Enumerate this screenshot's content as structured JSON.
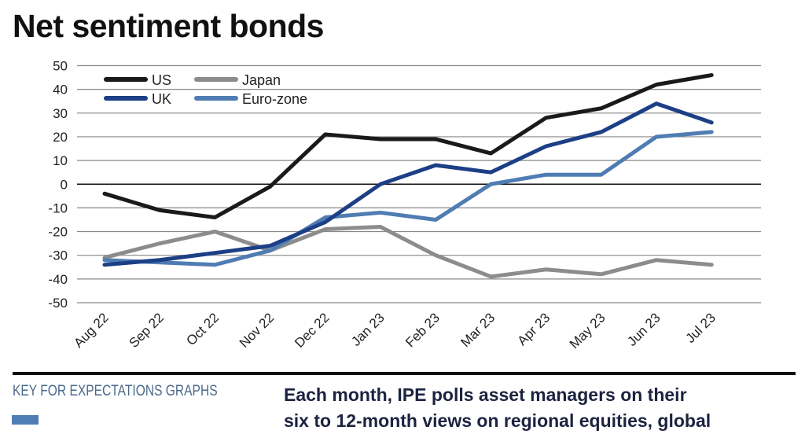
{
  "chart_data": {
    "type": "line",
    "title": "Net sentiment bonds",
    "categories": [
      "Aug 22",
      "Sep 22",
      "Oct 22",
      "Nov 22",
      "Dec 22",
      "Jan 23",
      "Feb 23",
      "Mar 23",
      "Apr 23",
      "May 23",
      "Jun 23",
      "Jul 23"
    ],
    "ylim": [
      -50,
      50
    ],
    "yticks": [
      50,
      40,
      30,
      20,
      10,
      0,
      -10,
      -20,
      -30,
      -40,
      -50
    ],
    "grid": true,
    "legend": "top-left",
    "series": [
      {
        "name": "US",
        "color": "#1a1a1a",
        "values": [
          -4,
          -11,
          -14,
          -1,
          21,
          19,
          19,
          13,
          28,
          32,
          42,
          46
        ]
      },
      {
        "name": "Japan",
        "color": "#8c8c8c",
        "values": [
          -31,
          -25,
          -20,
          -28,
          -19,
          -18,
          -30,
          -39,
          -36,
          -38,
          -32,
          -34
        ]
      },
      {
        "name": "UK",
        "color": "#1c3f86",
        "values": [
          -34,
          -32,
          -29,
          -26,
          -16,
          0,
          8,
          5,
          16,
          22,
          34,
          26
        ]
      },
      {
        "name": "Euro-zone",
        "color": "#4f7db3",
        "values": [
          -32,
          -33,
          -34,
          -28,
          -14,
          -12,
          -15,
          0,
          4,
          4,
          20,
          22
        ]
      }
    ]
  },
  "footer": {
    "key_title": "KEY FOR EXPECTATIONS GRAPHS",
    "key_color": "#4f7db3",
    "intro_line1": "Each month, IPE polls asset managers on their",
    "intro_line2": "six to 12-month views on regional equities, global"
  }
}
